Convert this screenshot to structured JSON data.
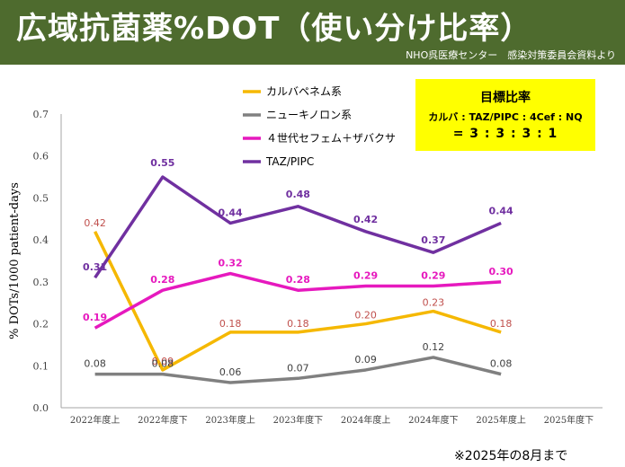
{
  "header": {
    "title": "広域抗菌薬%DOT（使い分け比率）",
    "source": "NHO呉医療センター　感染対策委員会資料より",
    "bg_color": "#4e6b2e"
  },
  "target": {
    "heading": "目標比率",
    "formula": "カルバ : TAZ/PIPC : 4Cef : NQ",
    "ratio": "= 3 : 3 : 3 : 1"
  },
  "footnote": "※2025年の8月まで",
  "chart_data": {
    "type": "line",
    "title": "",
    "xlabel": "",
    "ylabel": "% DOTs/1000 patient-days",
    "categories": [
      "2022年度上",
      "2022年度下",
      "2023年度上",
      "2023年度下",
      "2024年度上",
      "2024年度下",
      "2025年度上",
      "2025年度下"
    ],
    "ylim": [
      0,
      0.7
    ],
    "yticks": [
      "0.0",
      "0.1",
      "0.2",
      "0.3",
      "0.4",
      "0.5",
      "0.6",
      "0.7"
    ],
    "legend_position": "top-left",
    "series": [
      {
        "name": "カルバペネム系",
        "color": "#f5b800",
        "label_color": "#c0504d",
        "values": [
          0.42,
          0.09,
          0.18,
          0.18,
          0.2,
          0.23,
          0.18,
          null
        ],
        "labels": [
          "0.42",
          "0.09",
          "0.18",
          "0.18",
          "0.20",
          "0.23",
          "0.18",
          ""
        ]
      },
      {
        "name": "ニューキノロン系",
        "color": "#808080",
        "label_color": "#404040",
        "values": [
          0.08,
          0.08,
          0.06,
          0.07,
          0.09,
          0.12,
          0.08,
          null
        ],
        "labels": [
          "0.08",
          "0.08",
          "0.06",
          "0.07",
          "0.09",
          "0.12",
          "0.08",
          ""
        ]
      },
      {
        "name": "４世代セフェム＋ザバクサ",
        "color": "#e619be",
        "label_color": "#e619be",
        "values": [
          0.19,
          0.28,
          0.32,
          0.28,
          0.29,
          0.29,
          0.3,
          null
        ],
        "labels": [
          "0.19",
          "0.28",
          "0.32",
          "0.28",
          "0.29",
          "0.29",
          "0.30",
          ""
        ]
      },
      {
        "name": "TAZ/PIPC",
        "color": "#7030a0",
        "label_color": "#7030a0",
        "values": [
          0.31,
          0.55,
          0.44,
          0.48,
          0.42,
          0.37,
          0.44,
          null
        ],
        "labels": [
          "0.31",
          "0.55",
          "0.44",
          "0.48",
          "0.42",
          "0.37",
          "0.44",
          ""
        ]
      }
    ]
  }
}
